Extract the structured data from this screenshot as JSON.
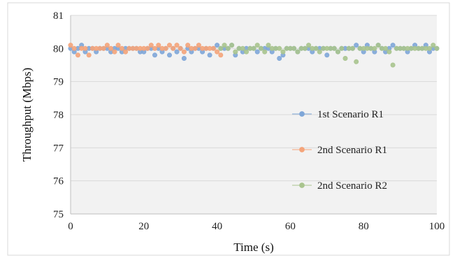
{
  "chart_data": {
    "type": "scatter",
    "xlabel": "Time  (s)",
    "ylabel": "Throughput (Mbps)",
    "xlim": [
      0,
      100
    ],
    "ylim": [
      75,
      81
    ],
    "xticks": [
      0,
      20,
      40,
      60,
      80,
      100
    ],
    "yticks": [
      75,
      76,
      77,
      78,
      79,
      80,
      81
    ],
    "grid": "horizontal",
    "legend_position": "right",
    "series": [
      {
        "name": "1st Scenario R1",
        "color": "#7EA6D8",
        "x": [
          0,
          1,
          2,
          3,
          4,
          5,
          6,
          7,
          8,
          9,
          10,
          11,
          12,
          13,
          14,
          15,
          16,
          17,
          18,
          19,
          20,
          21,
          22,
          23,
          24,
          25,
          26,
          27,
          28,
          29,
          30,
          31,
          32,
          33,
          34,
          35,
          36,
          37,
          38,
          39,
          40,
          41,
          42,
          43,
          44,
          45,
          46,
          47,
          48,
          49,
          50,
          51,
          52,
          53,
          54,
          55,
          56,
          57,
          58,
          59,
          60,
          61,
          62,
          63,
          64,
          65,
          66,
          67,
          68,
          69,
          70,
          71,
          72,
          73,
          74,
          75,
          76,
          77,
          78,
          79,
          80,
          81,
          82,
          83,
          84,
          85,
          86,
          87,
          88,
          89,
          90,
          91,
          92,
          93,
          94,
          95,
          96,
          97,
          98,
          99,
          100
        ],
        "y": [
          80.0,
          79.9,
          80.0,
          80.1,
          79.9,
          80.0,
          80.0,
          79.9,
          80.0,
          80.0,
          80.0,
          79.9,
          80.0,
          80.0,
          79.9,
          80.0,
          80.0,
          80.0,
          80.0,
          79.9,
          79.9,
          80.0,
          80.0,
          79.8,
          80.0,
          79.9,
          80.0,
          79.8,
          80.0,
          79.9,
          80.0,
          79.7,
          80.0,
          79.9,
          80.0,
          80.0,
          79.9,
          80.0,
          79.8,
          80.0,
          80.1,
          80.0,
          80.0,
          80.0,
          80.1,
          79.8,
          80.0,
          79.9,
          80.0,
          80.0,
          80.0,
          79.9,
          80.0,
          80.0,
          80.0,
          79.9,
          80.0,
          79.7,
          79.8,
          80.0,
          80.0,
          80.0,
          79.9,
          80.0,
          80.0,
          80.0,
          79.9,
          80.0,
          80.0,
          80.0,
          79.8,
          80.0,
          80.0,
          79.9,
          80.0,
          80.0,
          80.0,
          80.0,
          80.1,
          80.0,
          79.9,
          80.1,
          80.0,
          79.9,
          80.1,
          80.0,
          79.9,
          80.0,
          80.1,
          80.0,
          80.0,
          80.0,
          79.9,
          80.0,
          80.1,
          80.0,
          80.0,
          80.1,
          79.9,
          80.0,
          80.0
        ]
      },
      {
        "name": "2nd Scenario R1",
        "color": "#F4A47A",
        "x": [
          0,
          1,
          2,
          3,
          4,
          5,
          6,
          7,
          8,
          9,
          10,
          11,
          12,
          13,
          14,
          15,
          16,
          17,
          18,
          19,
          20,
          21,
          22,
          23,
          24,
          25,
          26,
          27,
          28,
          29,
          30,
          31,
          32,
          33,
          34,
          35,
          36,
          37,
          38,
          39,
          40,
          41
        ],
        "y": [
          80.1,
          80.0,
          79.8,
          80.0,
          80.0,
          79.8,
          80.0,
          80.0,
          80.0,
          80.0,
          80.1,
          80.0,
          79.9,
          80.1,
          80.0,
          79.9,
          80.0,
          80.0,
          80.0,
          80.0,
          80.0,
          80.0,
          80.1,
          80.0,
          80.1,
          80.0,
          80.0,
          80.1,
          80.0,
          80.1,
          80.0,
          79.9,
          80.1,
          80.0,
          80.0,
          80.1,
          80.0,
          80.0,
          80.0,
          80.0,
          79.9,
          79.8
        ]
      },
      {
        "name": "2nd Scenario R2",
        "color": "#A9C48E",
        "x": [
          41,
          42,
          43,
          44,
          45,
          46,
          47,
          48,
          49,
          50,
          51,
          52,
          53,
          54,
          55,
          56,
          57,
          58,
          59,
          60,
          61,
          62,
          63,
          64,
          65,
          66,
          67,
          68,
          69,
          70,
          71,
          72,
          73,
          74,
          75,
          76,
          77,
          78,
          79,
          80,
          81,
          82,
          83,
          84,
          85,
          86,
          87,
          88,
          89,
          90,
          91,
          92,
          93,
          94,
          95,
          96,
          97,
          98,
          99,
          100
        ],
        "y": [
          80.0,
          80.1,
          80.0,
          80.1,
          79.9,
          80.0,
          80.0,
          79.9,
          80.0,
          80.0,
          80.1,
          80.0,
          79.9,
          80.1,
          80.0,
          80.0,
          80.0,
          79.9,
          80.0,
          80.0,
          80.0,
          79.9,
          80.0,
          80.0,
          80.1,
          80.0,
          80.0,
          79.9,
          80.0,
          80.0,
          80.0,
          80.0,
          79.9,
          80.0,
          79.7,
          80.0,
          80.0,
          79.6,
          80.0,
          80.0,
          80.0,
          80.0,
          80.0,
          80.1,
          80.0,
          80.0,
          79.9,
          79.5,
          80.0,
          80.0,
          80.0,
          80.0,
          80.0,
          80.0,
          80.0,
          80.0,
          80.0,
          80.0,
          80.1,
          80.0
        ]
      }
    ]
  }
}
